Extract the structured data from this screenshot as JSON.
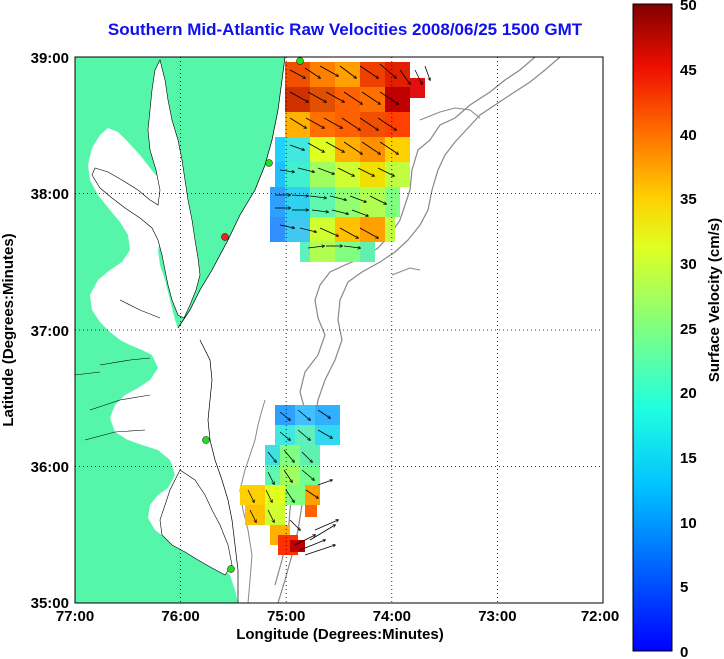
{
  "title": "Southern Mid-Atlantic Raw Velocities 2008/06/25 1500 GMT",
  "x_axis": {
    "label": "Longitude (Degrees:Minutes)",
    "ticks": [
      "77:00",
      "76:00",
      "75:00",
      "74:00",
      "73:00",
      "72:00"
    ]
  },
  "y_axis": {
    "label": "Latitude (Degrees:Minutes)",
    "ticks": [
      "39:00",
      "38:00",
      "37:00",
      "36:00",
      "35:00"
    ]
  },
  "colorbar": {
    "label": "Surface Velocity (cm/s)",
    "ticks": [
      "50",
      "45",
      "40",
      "35",
      "30",
      "25",
      "20",
      "15",
      "10",
      "5",
      "0"
    ],
    "min": 0,
    "max": 50,
    "colormap": "jet"
  },
  "colors": {
    "land": "#55f5aa",
    "title": "#1010ee",
    "station_green": "#22dd22",
    "station_red": "#ee2222"
  },
  "chart_data": {
    "type": "heatmap",
    "lon_range": [
      -77,
      -72
    ],
    "lat_range": [
      35,
      39
    ],
    "grid": true
  }
}
